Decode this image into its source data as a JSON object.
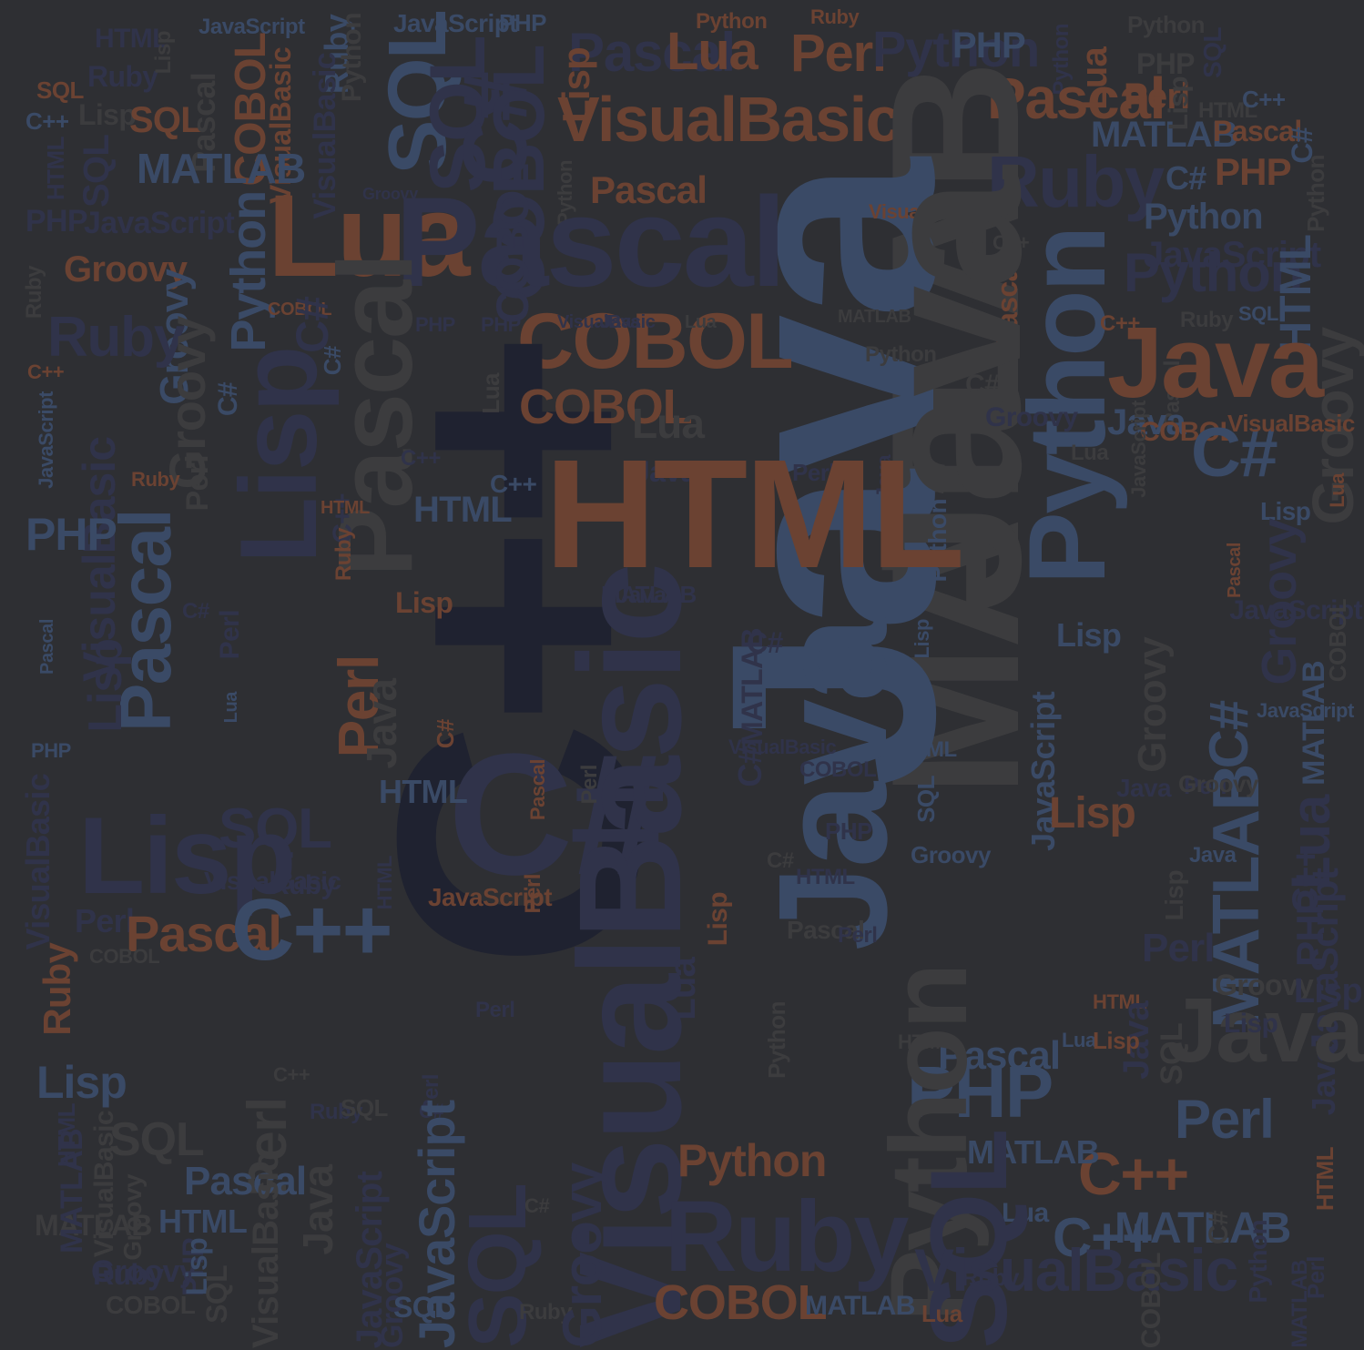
{
  "palette": {
    "background": "#2e2f33",
    "navy": "#30334a",
    "blue": "#3a4a66",
    "rust": "#6b4232",
    "gray": "#3c3c3e",
    "dark": "#1f2230"
  },
  "words": [
    "HTML",
    "JavaScript",
    "JavaScript",
    "PHP",
    "Python",
    "Ruby",
    "Python",
    "Ruby",
    "Lisp",
    "Pascal",
    "Lua",
    "Perl",
    "Python",
    "PHP",
    "Python",
    "PHP",
    "SQL",
    "SQL",
    "Ruby",
    "Python",
    "C++",
    "Lisp",
    "SQL",
    "HTML",
    "SQL",
    "Pascal",
    "COBOL",
    "VisualBasic",
    "VisualBasic",
    "SQL",
    "C#",
    "COBOL",
    "Lisp",
    "Pascal",
    "Lua",
    "Perl",
    "VisualBasic",
    "MATLAB",
    "SQL",
    "Ruby",
    "HTML",
    "MATLAB",
    "Pascal",
    "C#",
    "C++",
    "Lisp",
    "Python",
    "MATLAB",
    "Pascal",
    "Ruby",
    "PHP",
    "C#",
    "Java",
    "Groovy",
    "Python",
    "PHP",
    "JavaScript",
    "Python",
    "Lua",
    "Pascal",
    "COBOL",
    "JavaScript",
    "VisualBasic",
    "Python",
    "Groovy",
    "C++",
    "Groovy",
    "Python",
    "HTML",
    "Ruby",
    "COBOL",
    "Pascal",
    "Ruby",
    "Groovy",
    "Pascal",
    "Python",
    "C#",
    "PHP",
    "PHP",
    "COBOL",
    "VisualBasic",
    "Java",
    "Lua",
    "MATLAB",
    "Java",
    "SQL",
    "C++",
    "Groovy",
    "Ruby",
    "C++",
    "C#",
    "C#",
    "JavaScript",
    "Pascal",
    "Java",
    "C#",
    "C++",
    "COBOL",
    "Lua",
    "Lua",
    "Python",
    "Groovy",
    "Java",
    "COBOL",
    "Lua",
    "JavaScript",
    "Ruby",
    "VisualBasic",
    "Lisp",
    "Perl",
    "C++",
    "Perl",
    "C++",
    "HTML",
    "Java",
    "C#",
    "C++",
    "HTML",
    "VisualBasic",
    "Java",
    "Lua",
    "Lisp",
    "PHP",
    "Ruby",
    "Pascal",
    "Python",
    "Pascal",
    "HTML",
    "Groovy",
    "Lisp",
    "Lisp",
    "MATLAB",
    "JavaScript",
    "Pascal",
    "Lisp",
    "MATLAB",
    "COBOL",
    "C#",
    "C#",
    "Java",
    "Perl",
    "Groovy",
    "Lisp",
    "C#",
    "JavaScript",
    "Java",
    "Lua",
    "C#",
    "VisualBasic",
    "MATLAB",
    "JavaScript",
    "Perl",
    "Perl",
    "Java",
    "HTML",
    "C#",
    "PHP",
    "C#",
    "COBOL",
    "PHP",
    "Lisp",
    "Lua",
    "MATLAB",
    "Java",
    "Groovy",
    "HTML",
    "Pascal",
    "Perl",
    "HTML",
    "Groovy",
    "C++",
    "JavaScript",
    "VisualBasic",
    "SQL",
    "VisualBasic",
    "Ruby",
    "Lisp",
    "Perl",
    "Pascal",
    "JavaScript",
    "C++",
    "Perl",
    "Lisp",
    "C#",
    "HTML",
    "SQL",
    "Java",
    "Lisp",
    "Perl",
    "Pascal",
    "PHP",
    "Ruby",
    "COBOL",
    "Groovy",
    "VisualBasic",
    "Perl",
    "Perl",
    "HTML",
    "HTML",
    "Lua",
    "Java",
    "Pascal",
    "Lisp",
    "SQL",
    "Lisp",
    "Java",
    "Java",
    "Lisp",
    "HTML",
    "VisualBasic",
    "Python",
    "SQL",
    "Perl",
    "C++",
    "Perl",
    "Ruby",
    "SQL",
    "Perl",
    "C#",
    "JavaScript",
    "PHP",
    "HTML",
    "Lisp",
    "Lua",
    "Python",
    "Groovy",
    "Pascal",
    "MATLAB",
    "C++",
    "Lua",
    "Ruby",
    "MATLAB",
    "MATLAB",
    "Ruby",
    "PHP",
    "Perl",
    "Python",
    "Groovy",
    "HTML",
    "VisualBasic",
    "Java",
    "Groovy",
    "C#",
    "SQL",
    "MATLAB",
    "C#",
    "C++",
    "SQL",
    "Ruby",
    "Python",
    "Ruby",
    "Lisp",
    "Groovy",
    "SQL",
    "JavaScript",
    "SQL",
    "MATLAB",
    "COBOL",
    "COBOL",
    "VisualBasic",
    "MATLAB",
    "Lua",
    "COBOL"
  ]
}
